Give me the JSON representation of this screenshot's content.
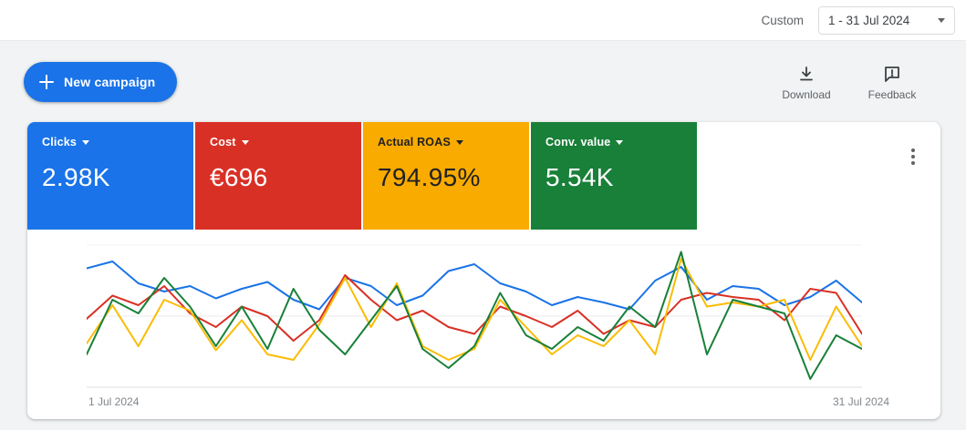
{
  "header": {
    "custom_label": "Custom",
    "date_range": "1 - 31 Jul 2024"
  },
  "toolbar": {
    "new_campaign_label": "New campaign",
    "download_label": "Download",
    "feedback_label": "Feedback"
  },
  "metrics": {
    "tiles": [
      {
        "label": "Clicks",
        "value": "2.98K",
        "color": "#1a73e8",
        "text_color": "#ffffff"
      },
      {
        "label": "Cost",
        "value": "€696",
        "color": "#d93025",
        "text_color": "#ffffff"
      },
      {
        "label": "Actual ROAS",
        "value": "794.95%",
        "color": "#f9ab00",
        "text_color": "#202124"
      },
      {
        "label": "Conv. value",
        "value": "5.54K",
        "color": "#188038",
        "text_color": "#ffffff"
      }
    ]
  },
  "chart_data": {
    "type": "line",
    "title": "",
    "xlabel": "",
    "ylabel": "",
    "x_tick_labels": [
      "1 Jul 2024",
      "31 Jul 2024"
    ],
    "x": [
      1,
      2,
      3,
      4,
      5,
      6,
      7,
      8,
      9,
      10,
      11,
      12,
      13,
      14,
      15,
      16,
      17,
      18,
      19,
      20,
      21,
      22,
      23,
      24,
      25,
      26,
      27,
      28,
      29,
      30,
      31
    ],
    "ylim": [
      0,
      100
    ],
    "grid": "horizontal",
    "legend": "none",
    "series": [
      {
        "name": "Clicks",
        "color": "#1a73e8",
        "values": [
          85,
          90,
          74,
          68,
          72,
          63,
          70,
          75,
          62,
          55,
          78,
          72,
          58,
          65,
          83,
          88,
          74,
          68,
          58,
          64,
          60,
          55,
          76,
          86,
          62,
          72,
          70,
          58,
          64,
          76,
          60
        ]
      },
      {
        "name": "Cost",
        "color": "#d93025",
        "values": [
          48,
          65,
          58,
          72,
          52,
          42,
          57,
          50,
          32,
          47,
          80,
          62,
          47,
          54,
          42,
          37,
          57,
          50,
          42,
          54,
          37,
          47,
          42,
          62,
          67,
          64,
          62,
          47,
          70,
          67,
          37
        ]
      },
      {
        "name": "Actual ROAS",
        "color": "#fbbc04",
        "values": [
          30,
          58,
          28,
          62,
          54,
          25,
          47,
          22,
          18,
          44,
          78,
          42,
          74,
          28,
          18,
          26,
          62,
          42,
          22,
          36,
          28,
          47,
          22,
          92,
          57,
          60,
          57,
          62,
          18,
          57,
          28
        ]
      },
      {
        "name": "Conv. value",
        "color": "#188038",
        "values": [
          22,
          62,
          52,
          78,
          57,
          28,
          57,
          26,
          70,
          40,
          22,
          47,
          72,
          26,
          12,
          28,
          67,
          36,
          26,
          42,
          32,
          57,
          42,
          97,
          22,
          62,
          57,
          52,
          4,
          36,
          26
        ]
      }
    ]
  }
}
